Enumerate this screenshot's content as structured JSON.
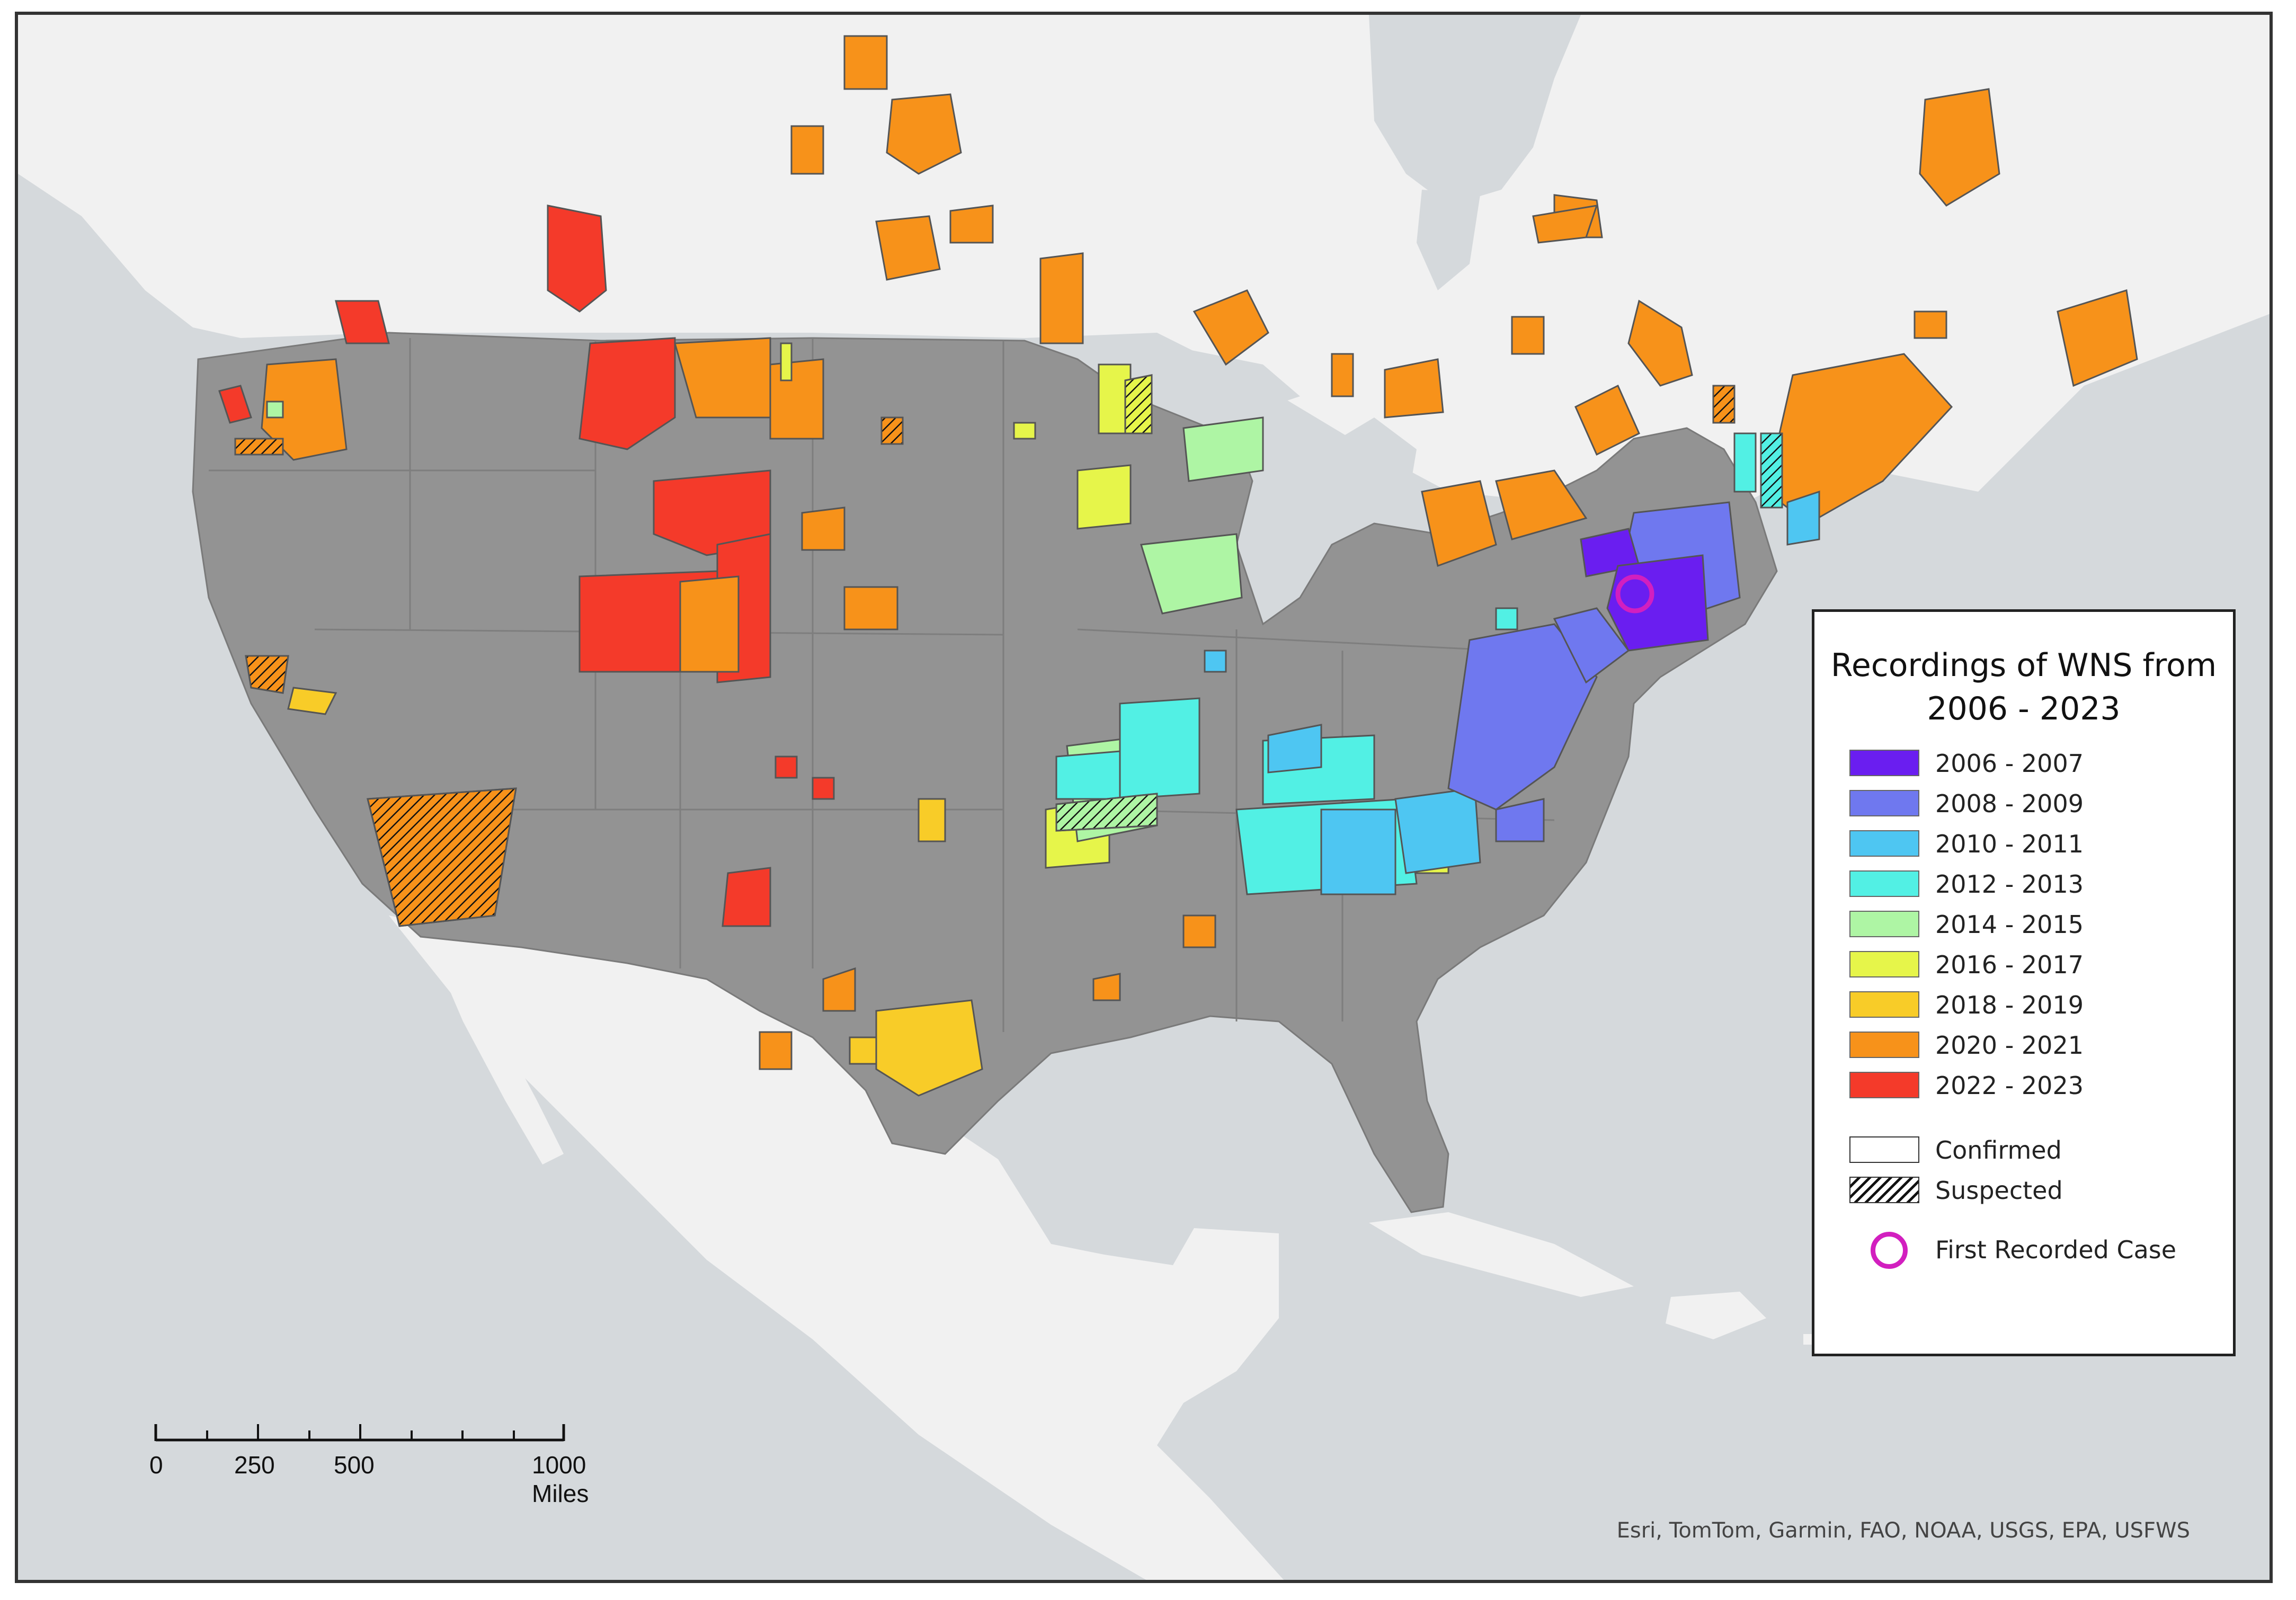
{
  "map": {
    "title": "Recordings of WNS from 2006 - 2023",
    "legend": {
      "title": "Recordings of WNS from 2006 - 2023",
      "periods": [
        {
          "label": "2006 - 2007",
          "color": "#6a1ef0"
        },
        {
          "label": "2008 - 2009",
          "color": "#6f78ef"
        },
        {
          "label": "2010 - 2011",
          "color": "#4ec6f2"
        },
        {
          "label": "2012 - 2013",
          "color": "#52f0e4"
        },
        {
          "label": "2014 - 2015",
          "color": "#aef5a4"
        },
        {
          "label": "2016 - 2017",
          "color": "#e6f54a"
        },
        {
          "label": "2018 - 2019",
          "color": "#f8cc28"
        },
        {
          "label": "2020 - 2021",
          "color": "#f7921a"
        },
        {
          "label": "2022 - 2023",
          "color": "#f43a2a"
        }
      ],
      "status": [
        {
          "label": "Confirmed"
        },
        {
          "label": "Suspected"
        }
      ],
      "first_case_label": "First Recorded Case",
      "first_case_color": "#d21fbf"
    },
    "scale": {
      "labels": [
        "0",
        "250",
        "500",
        "1000 Miles"
      ]
    },
    "credit": "Esri, TomTom, Garmin, FAO, NOAA, USGS, EPA, USFWS"
  }
}
